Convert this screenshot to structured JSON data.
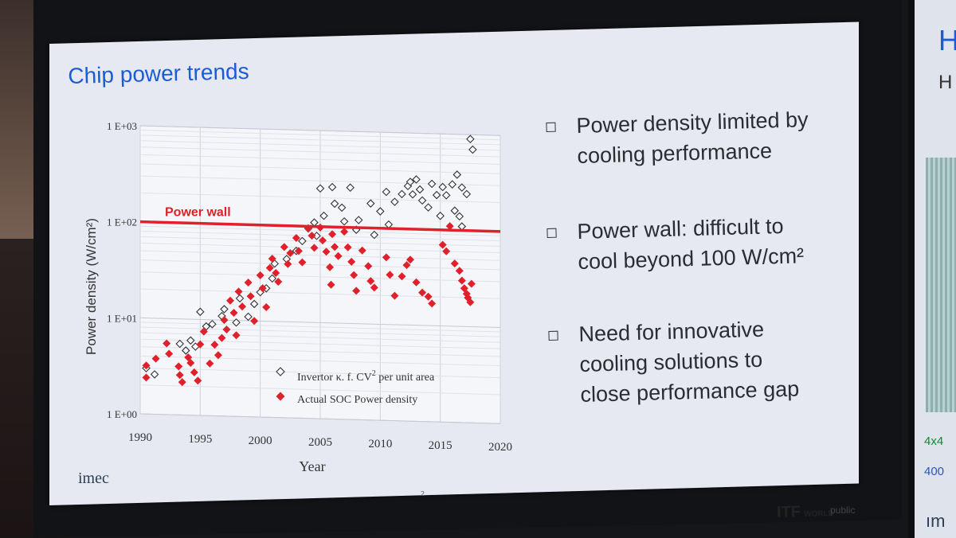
{
  "slide": {
    "title": "Chip power trends",
    "bullets": [
      [
        "Power density limited by",
        "cooling performance"
      ],
      [
        "Power wall: difficult to",
        "cool beyond 100 W/cm²"
      ],
      [
        "Need for innovative",
        "cooling solutions to",
        "close performance gap"
      ]
    ],
    "logo": "imec",
    "footer_brand": "ITF",
    "footer_brand_small": "WORLD",
    "footer_classification": "public",
    "page_number": "2"
  },
  "right_screen": {
    "heading_letter": "H",
    "subheading_letter": "H",
    "label_size": "4x4",
    "label_value": "400",
    "logo": "ım"
  },
  "chart_data": {
    "type": "scatter",
    "xlabel": "Year",
    "ylabel": "Power density (W/cm²)",
    "xlim": [
      1990,
      2020
    ],
    "ylim_log10": [
      0,
      3
    ],
    "x_ticks": [
      "1990",
      "1995",
      "2000",
      "2005",
      "2010",
      "2015",
      "2020"
    ],
    "y_ticks": [
      "1 E+00",
      "1 E+01",
      "1 E+02",
      "1 E+03"
    ],
    "grid": true,
    "legend_position": "bottom-center",
    "annotation": {
      "label": "Power wall",
      "y": 100,
      "color": "#e0202a"
    },
    "series": [
      {
        "name": "Invertor κ. f. CV² per unit area",
        "legend_text": "Invertor κ. f. CV",
        "legend_sup": "2",
        "legend_tail": " per unit area",
        "marker": "open-diamond",
        "color": "#333333",
        "points": [
          [
            1990.5,
            3.0
          ],
          [
            1991.2,
            2.6
          ],
          [
            1993.3,
            5.5
          ],
          [
            1993.8,
            4.7
          ],
          [
            1994.2,
            6.0
          ],
          [
            1994.6,
            5.2
          ],
          [
            1995,
            12
          ],
          [
            1995.5,
            8.5
          ],
          [
            1996,
            9
          ],
          [
            1996.8,
            11
          ],
          [
            1997,
            13
          ],
          [
            1998,
            9.5
          ],
          [
            1998.3,
            17
          ],
          [
            1999,
            11
          ],
          [
            1999.5,
            15
          ],
          [
            2000,
            20
          ],
          [
            2000.5,
            22
          ],
          [
            2001,
            28
          ],
          [
            2001.2,
            40
          ],
          [
            2002.2,
            45
          ],
          [
            2003,
            55
          ],
          [
            2003.5,
            70
          ],
          [
            2004,
            95
          ],
          [
            2004.5,
            110
          ],
          [
            2004.7,
            80
          ],
          [
            2005,
            250
          ],
          [
            2005.3,
            130
          ],
          [
            2006,
            260
          ],
          [
            2006.2,
            175
          ],
          [
            2006.8,
            160
          ],
          [
            2007,
            115
          ],
          [
            2007.5,
            260
          ],
          [
            2008,
            95
          ],
          [
            2008.2,
            120
          ],
          [
            2009.2,
            180
          ],
          [
            2009.5,
            85
          ],
          [
            2010,
            150
          ],
          [
            2010.5,
            240
          ],
          [
            2010.7,
            110
          ],
          [
            2011.2,
            190
          ],
          [
            2011.8,
            230
          ],
          [
            2012.3,
            280
          ],
          [
            2012.5,
            310
          ],
          [
            2012.7,
            230
          ],
          [
            2013,
            330
          ],
          [
            2013.3,
            260
          ],
          [
            2013.5,
            200
          ],
          [
            2014,
            170
          ],
          [
            2014.3,
            300
          ],
          [
            2014.7,
            230
          ],
          [
            2015,
            140
          ],
          [
            2015.2,
            280
          ],
          [
            2015.5,
            230
          ],
          [
            2016,
            300
          ],
          [
            2016.2,
            160
          ],
          [
            2016.6,
            140
          ],
          [
            2016.8,
            110
          ],
          [
            2016.4,
            380
          ],
          [
            2016.8,
            280
          ],
          [
            2017.2,
            240
          ],
          [
            2017.5,
            900
          ],
          [
            2017.7,
            700
          ]
        ]
      },
      {
        "name": "Actual SOC Power density",
        "legend_text": "Actual SOC Power density",
        "marker": "filled-diamond",
        "color": "#e0202a",
        "points": [
          [
            1990.5,
            3.2
          ],
          [
            1990.5,
            2.4
          ],
          [
            1991.3,
            3.8
          ],
          [
            1992.2,
            5.5
          ],
          [
            1992.4,
            4.3
          ],
          [
            1993.2,
            3.2
          ],
          [
            1993.3,
            2.6
          ],
          [
            1993.5,
            2.2
          ],
          [
            1994,
            4.0
          ],
          [
            1994.2,
            3.5
          ],
          [
            1994.5,
            2.8
          ],
          [
            1994.8,
            2.3
          ],
          [
            1995,
            5.5
          ],
          [
            1995.3,
            7.5
          ],
          [
            1995.8,
            3.5
          ],
          [
            1996.2,
            5.5
          ],
          [
            1996.5,
            4.3
          ],
          [
            1996.8,
            6.5
          ],
          [
            1997,
            10
          ],
          [
            1997.2,
            8
          ],
          [
            1997.5,
            16
          ],
          [
            1997.8,
            12
          ],
          [
            1998,
            7
          ],
          [
            1998.2,
            20
          ],
          [
            1998.5,
            14
          ],
          [
            1999,
            25
          ],
          [
            1999.2,
            18
          ],
          [
            1999.5,
            10
          ],
          [
            2000,
            30
          ],
          [
            2000.2,
            22
          ],
          [
            2000.5,
            14
          ],
          [
            2000.8,
            36
          ],
          [
            2001,
            45
          ],
          [
            2001.3,
            32
          ],
          [
            2001.5,
            26
          ],
          [
            2002,
            60
          ],
          [
            2002.3,
            40
          ],
          [
            2002.5,
            52
          ],
          [
            2003,
            75
          ],
          [
            2003.2,
            55
          ],
          [
            2003.5,
            42
          ],
          [
            2004,
            95
          ],
          [
            2004.3,
            80
          ],
          [
            2004.5,
            60
          ],
          [
            2005,
            98
          ],
          [
            2005.2,
            72
          ],
          [
            2005.5,
            55
          ],
          [
            2005.8,
            38
          ],
          [
            2005.9,
            25
          ],
          [
            2006,
            84
          ],
          [
            2006.2,
            62
          ],
          [
            2006.5,
            50
          ],
          [
            2007,
            90
          ],
          [
            2007.3,
            62
          ],
          [
            2007.6,
            44
          ],
          [
            2007.8,
            32
          ],
          [
            2008,
            22
          ],
          [
            2008.5,
            58
          ],
          [
            2009,
            40
          ],
          [
            2009.2,
            28
          ],
          [
            2009.5,
            24
          ],
          [
            2010.5,
            50
          ],
          [
            2010.8,
            33
          ],
          [
            2011.2,
            20
          ],
          [
            2011.8,
            32
          ],
          [
            2012.2,
            42
          ],
          [
            2012.5,
            48
          ],
          [
            2013,
            28
          ],
          [
            2013.5,
            22
          ],
          [
            2014,
            20
          ],
          [
            2014.3,
            17
          ],
          [
            2015.2,
            70
          ],
          [
            2015.5,
            60
          ],
          [
            2015.8,
            110
          ],
          [
            2016.2,
            45
          ],
          [
            2016.6,
            38
          ],
          [
            2016.8,
            30
          ],
          [
            2017,
            25
          ],
          [
            2017.2,
            22
          ],
          [
            2017.3,
            20
          ],
          [
            2017.5,
            18
          ],
          [
            2017.6,
            28
          ]
        ]
      }
    ]
  }
}
